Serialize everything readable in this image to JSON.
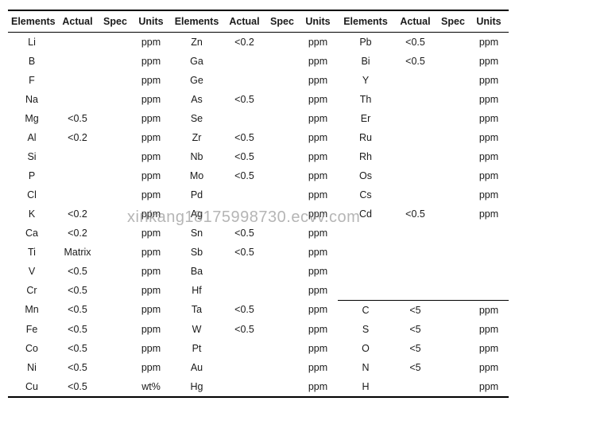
{
  "columns": [
    "Elements",
    "Actual",
    "Spec",
    "Units",
    "Elements",
    "Actual",
    "Spec",
    "Units",
    "Elements",
    "Actual",
    "Spec",
    "Units"
  ],
  "rows": [
    [
      "Li",
      "",
      "",
      "ppm",
      "Zn",
      "<0.2",
      "",
      "ppm",
      "Pb",
      "<0.5",
      "",
      "ppm"
    ],
    [
      "B",
      "",
      "",
      "ppm",
      "Ga",
      "",
      "",
      "ppm",
      "Bi",
      "<0.5",
      "",
      "ppm"
    ],
    [
      "F",
      "",
      "",
      "ppm",
      "Ge",
      "",
      "",
      "ppm",
      "Y",
      "",
      "",
      "ppm"
    ],
    [
      "Na",
      "",
      "",
      "ppm",
      "As",
      "<0.5",
      "",
      "ppm",
      "Th",
      "",
      "",
      "ppm"
    ],
    [
      "Mg",
      "<0.5",
      "",
      "ppm",
      "Se",
      "",
      "",
      "ppm",
      "Er",
      "",
      "",
      "ppm"
    ],
    [
      "Al",
      "<0.2",
      "",
      "ppm",
      "Zr",
      "<0.5",
      "",
      "ppm",
      "Ru",
      "",
      "",
      "ppm"
    ],
    [
      "Si",
      "",
      "",
      "ppm",
      "Nb",
      "<0.5",
      "",
      "ppm",
      "Rh",
      "",
      "",
      "ppm"
    ],
    [
      "P",
      "",
      "",
      "ppm",
      "Mo",
      "<0.5",
      "",
      "ppm",
      "Os",
      "",
      "",
      "ppm"
    ],
    [
      "Cl",
      "",
      "",
      "ppm",
      "Pd",
      "",
      "",
      "ppm",
      "Cs",
      "",
      "",
      "ppm"
    ],
    [
      "K",
      "<0.2",
      "",
      "ppm",
      "Ag",
      "",
      "",
      "ppm",
      "Cd",
      "<0.5",
      "",
      "ppm"
    ],
    [
      "Ca",
      "<0.2",
      "",
      "ppm",
      "Sn",
      "<0.5",
      "",
      "ppm",
      "",
      "",
      "",
      ""
    ],
    [
      "Ti",
      "Matrix",
      "",
      "ppm",
      "Sb",
      "<0.5",
      "",
      "ppm",
      "",
      "",
      "",
      ""
    ],
    [
      "V",
      "<0.5",
      "",
      "ppm",
      "Ba",
      "",
      "",
      "ppm",
      "",
      "",
      "",
      ""
    ],
    [
      "Cr",
      "<0.5",
      "",
      "ppm",
      "Hf",
      "",
      "",
      "ppm",
      "",
      "",
      "",
      ""
    ],
    [
      "Mn",
      "<0.5",
      "",
      "ppm",
      "Ta",
      "<0.5",
      "",
      "ppm",
      "C",
      "<5",
      "",
      "ppm"
    ],
    [
      "Fe",
      "<0.5",
      "",
      "ppm",
      "W",
      "<0.5",
      "",
      "ppm",
      "S",
      "<5",
      "",
      "ppm"
    ],
    [
      "Co",
      "<0.5",
      "",
      "ppm",
      "Pt",
      "",
      "",
      "ppm",
      "O",
      "<5",
      "",
      "ppm"
    ],
    [
      "Ni",
      "<0.5",
      "",
      "ppm",
      "Au",
      "",
      "",
      "ppm",
      "N",
      "<5",
      "",
      "ppm"
    ],
    [
      "Cu",
      "<0.5",
      "",
      "wt%",
      "Hg",
      "",
      "",
      "ppm",
      "H",
      "",
      "",
      "ppm"
    ]
  ],
  "separator_row": 14,
  "separator_cols_from": 8,
  "watermark": "xinkang18175998730.ecvv.com",
  "colors": {
    "text": "#1a1a1a",
    "background": "#ffffff",
    "border": "#000000",
    "watermark": "rgba(120,120,120,0.55)"
  },
  "font_size_pt": 12.5
}
